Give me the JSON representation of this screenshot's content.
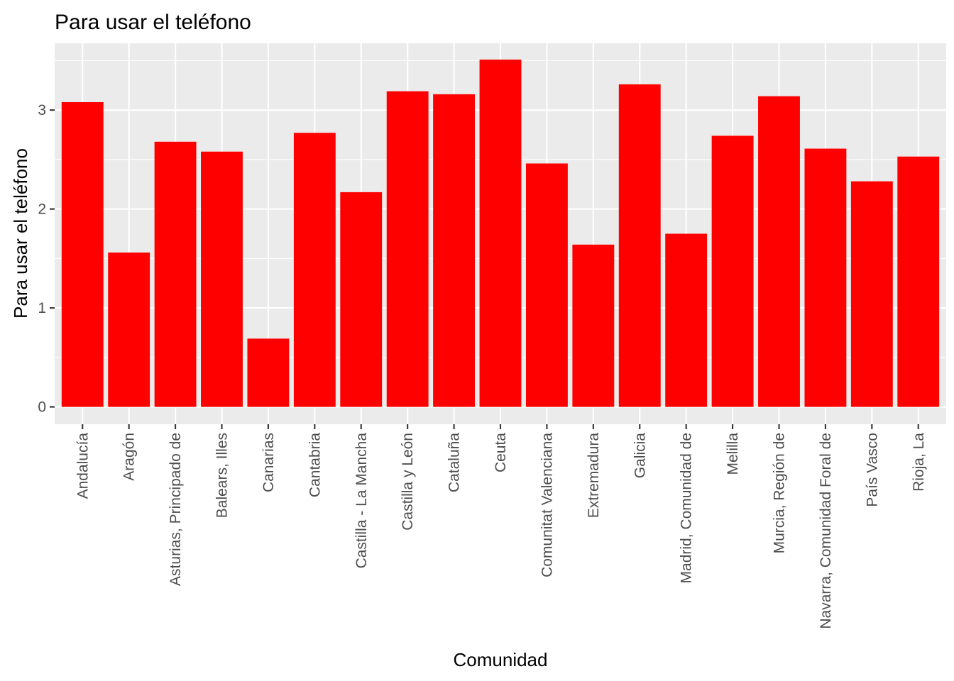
{
  "chart_data": {
    "type": "bar",
    "title": "Para usar el teléfono",
    "xlabel": "Comunidad",
    "ylabel": "Para usar el teléfono",
    "ylim": [
      -0.175,
      3.675
    ],
    "yticks": [
      0,
      1,
      2,
      3
    ],
    "ytick_labels": [
      "0",
      "1",
      "2",
      "3"
    ],
    "bar_color": "#ff0000",
    "panel_background": "#ebebeb",
    "grid": true,
    "legend": "none",
    "categories": [
      "Andalucía",
      "Aragón",
      "Asturias, Principado de",
      "Balears, Illes",
      "Canarias",
      "Cantabria",
      "Castilla - La Mancha",
      "Castilla y León",
      "Cataluña",
      "Ceuta",
      "Comunitat Valenciana",
      "Extremadura",
      "Galicia",
      "Madrid, Comunidad de",
      "Melilla",
      "Murcia, Región de",
      "Navarra, Comunidad Foral de",
      "País Vasco",
      "Rioja, La"
    ],
    "values": [
      3.08,
      1.56,
      2.68,
      2.58,
      0.69,
      2.77,
      2.17,
      3.19,
      3.16,
      3.51,
      2.46,
      1.64,
      3.26,
      1.75,
      2.74,
      3.14,
      2.61,
      2.28,
      2.53
    ]
  }
}
